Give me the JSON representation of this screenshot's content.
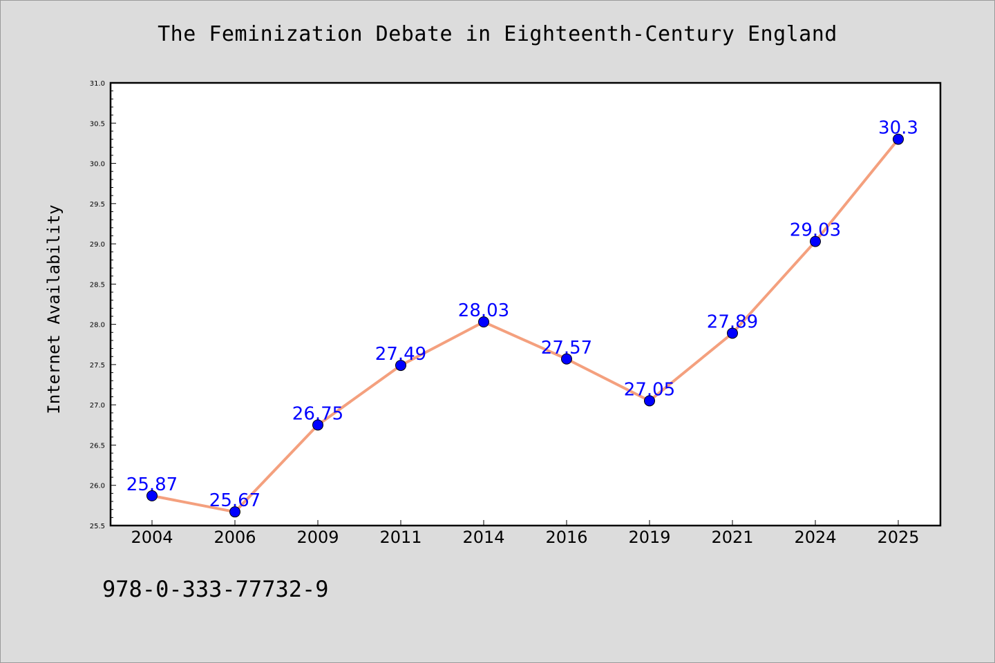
{
  "title": "The Feminization Debate in Eighteenth-Century England",
  "footer_text": "978-0-333-77732-9",
  "colors": {
    "background": "#dcdcdc",
    "plot_background": "#ffffff",
    "line": "#f4a07e",
    "marker": "#0000ff",
    "label": "#0000ff"
  },
  "chart_data": {
    "type": "line",
    "title": "The Feminization Debate in Eighteenth-Century England",
    "xlabel": "",
    "ylabel": "Internet Availability",
    "categories": [
      "2004",
      "2006",
      "2009",
      "2011",
      "2014",
      "2016",
      "2019",
      "2021",
      "2024",
      "2025"
    ],
    "series": [
      {
        "values": [
          25.87,
          25.67,
          26.75,
          27.49,
          28.03,
          27.57,
          27.05,
          27.89,
          29.03,
          30.3
        ],
        "data_labels": [
          "25.87",
          "25.67",
          "26.75",
          "27.49",
          "28.03",
          "27.57",
          "27.05",
          "27.89",
          "29.03",
          "30.3"
        ]
      }
    ],
    "ylim": [
      25.5,
      31.0
    ],
    "yticks": [
      "25.5",
      "26.0",
      "26.5",
      "27.0",
      "27.5",
      "28.0",
      "28.5",
      "29.0",
      "29.5",
      "30.0",
      "30.5",
      "31.0"
    ],
    "grid": false,
    "legend": "none"
  }
}
